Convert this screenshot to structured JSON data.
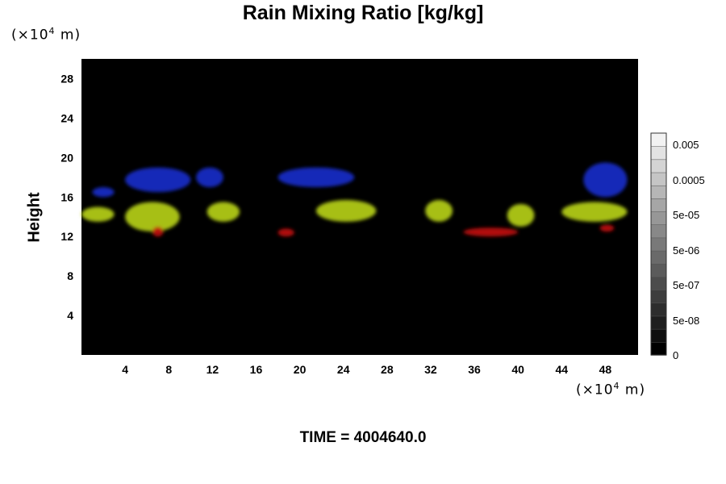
{
  "header": {
    "title": "Rain Mixing Ratio [kg/kg]"
  },
  "footer": {
    "time_label": "TIME = 4004640.0"
  },
  "chart_data": {
    "type": "heatmap",
    "title": "Rain Mixing Ratio [kg/kg]",
    "ylabel": "Height",
    "xlabel": "",
    "x_unit": {
      "prefix": "(×10",
      "exp": "4",
      "suffix": " m)"
    },
    "y_unit": {
      "prefix": "(×10",
      "exp": "4",
      "suffix": " m)"
    },
    "xlim": [
      0,
      51
    ],
    "ylim": [
      0,
      30
    ],
    "x_ticks": [
      4,
      8,
      12,
      16,
      20,
      24,
      28,
      32,
      36,
      40,
      44,
      48
    ],
    "y_ticks": [
      4,
      8,
      12,
      16,
      20,
      24,
      28
    ],
    "background_color": "#000000",
    "colorbar": {
      "labels": [
        "0.005",
        "0.0005",
        "5e-05",
        "5e-06",
        "5e-07",
        "5e-08",
        "0"
      ],
      "levels": 17,
      "colors": {
        "low": "#000000",
        "high": "#f2f2f2"
      }
    },
    "features": [
      {
        "x": [
          4,
          9
        ],
        "y": [
          12.5,
          15.5
        ],
        "color": "#b5cf1a"
      },
      {
        "x": [
          11.5,
          14.5
        ],
        "y": [
          13.5,
          15.5
        ],
        "color": "#b5cf1a"
      },
      {
        "x": [
          21.5,
          27
        ],
        "y": [
          13.5,
          15.7
        ],
        "color": "#b5cf1a"
      },
      {
        "x": [
          31.5,
          34
        ],
        "y": [
          13.5,
          15.7
        ],
        "color": "#b5cf1a"
      },
      {
        "x": [
          39,
          41.5
        ],
        "y": [
          13,
          15.3
        ],
        "color": "#b5cf1a"
      },
      {
        "x": [
          44,
          50
        ],
        "y": [
          13.5,
          15.5
        ],
        "color": "#b5cf1a"
      },
      {
        "x": [
          0,
          3
        ],
        "y": [
          13.5,
          15
        ],
        "color": "#b5cf1a"
      },
      {
        "x": [
          6.5,
          7.5
        ],
        "y": [
          12,
          13
        ],
        "color": "#c01010"
      },
      {
        "x": [
          18,
          19.5
        ],
        "y": [
          12,
          12.8
        ],
        "color": "#c01010"
      },
      {
        "x": [
          35,
          40
        ],
        "y": [
          12,
          12.9
        ],
        "color": "#c01010"
      },
      {
        "x": [
          47.5,
          48.8
        ],
        "y": [
          12.5,
          13.2
        ],
        "color": "#c01010"
      },
      {
        "x": [
          1,
          3
        ],
        "y": [
          16,
          17
        ],
        "color": "#1a2ac8"
      },
      {
        "x": [
          4,
          10
        ],
        "y": [
          16.5,
          19
        ],
        "color": "#1a2ac8"
      },
      {
        "x": [
          10.5,
          13
        ],
        "y": [
          17,
          19
        ],
        "color": "#1a2ac8"
      },
      {
        "x": [
          18,
          25
        ],
        "y": [
          17,
          19
        ],
        "color": "#1a2ac8"
      },
      {
        "x": [
          46,
          50
        ],
        "y": [
          16,
          19.5
        ],
        "color": "#1a2ac8"
      }
    ]
  }
}
